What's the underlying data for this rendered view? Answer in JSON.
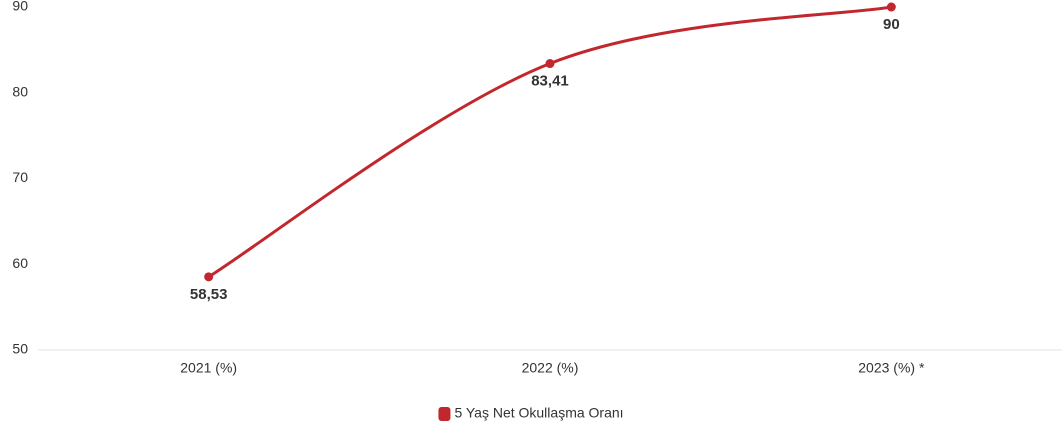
{
  "chart_data": {
    "type": "line",
    "categories": [
      "2021 (%)",
      "2022 (%)",
      "2023 (%) *"
    ],
    "series": [
      {
        "name": "5 Yaş Net Okullaşma Oranı",
        "color": "#c1272d",
        "values": [
          58.53,
          83.41,
          90
        ],
        "value_labels": [
          "58,53",
          "83,41",
          "90"
        ]
      }
    ],
    "ylim": [
      50,
      90
    ],
    "yticks": [
      50,
      60,
      70,
      80,
      90
    ],
    "grid": false,
    "legend": "bottom"
  }
}
